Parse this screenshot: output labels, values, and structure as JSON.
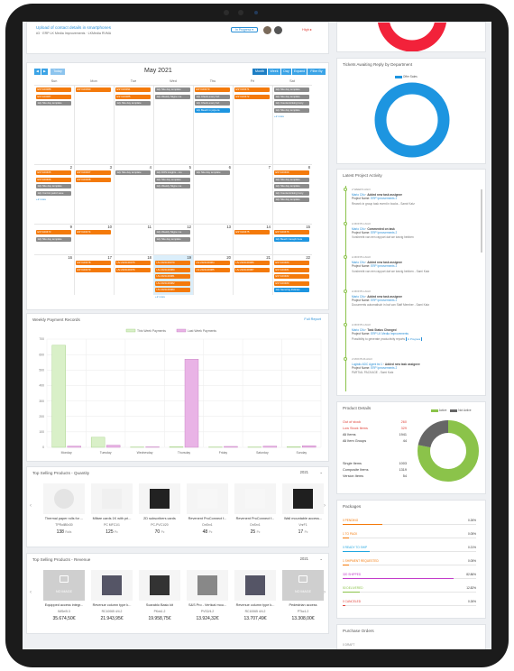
{
  "top_task": {
    "title": "Upload of contact details in smartphones",
    "sub": "#3 · ERP LK Media Improvements · LKMedia RVMA",
    "status": "In Progress ▾",
    "priority": "High ▸"
  },
  "calendar": {
    "today": "Today",
    "month": "May 2021",
    "views": [
      "Month",
      "Week",
      "Day",
      "Expand",
      "Filter By"
    ],
    "days": [
      "Sun",
      "Mon",
      "Tue",
      "Wed",
      "Thu",
      "Fri",
      "Sat"
    ],
    "weeks": [
      {
        "nums": [
          "",
          "",
          "",
          "",
          "",
          "",
          ""
        ],
        "events": [
          {
            "col": 0,
            "row": 0,
            "c": "o",
            "t": "ESY100088"
          },
          {
            "col": 0,
            "row": 1,
            "c": "o",
            "t": "ESY100087"
          },
          {
            "col": 0,
            "row": 2,
            "c": "g",
            "t": "12p Site day template"
          },
          {
            "col": 1,
            "row": 0,
            "c": "o",
            "t": "ESY100090"
          },
          {
            "col": 2,
            "row": 0,
            "c": "o",
            "t": "ESY100091"
          },
          {
            "col": 2,
            "row": 1,
            "c": "o",
            "t": "ESY100085"
          },
          {
            "col": 2,
            "row": 2,
            "c": "g",
            "t": "12p Site day template"
          },
          {
            "col": 3,
            "row": 0,
            "c": "g",
            "t": "12p Site day template"
          },
          {
            "col": 3,
            "row": 1,
            "c": "g",
            "t": "12p Weekly Skype me"
          },
          {
            "col": 4,
            "row": 0,
            "c": "o",
            "t": "ESY100470"
          },
          {
            "col": 4,
            "row": 1,
            "c": "g",
            "t": "12p Check every fort"
          },
          {
            "col": 4,
            "row": 2,
            "c": "g",
            "t": "12p Check every fort"
          },
          {
            "col": 4,
            "row": 3,
            "c": "b",
            "t": "12p Beach in julyo-la"
          },
          {
            "col": 5,
            "row": 0,
            "c": "o",
            "t": "ESY100471"
          },
          {
            "col": 5,
            "row": 1,
            "c": "o",
            "t": "ESY100472"
          },
          {
            "col": 6,
            "row": 0,
            "c": "g",
            "t": "12p Site day template"
          },
          {
            "col": 6,
            "row": 1,
            "c": "g",
            "t": "12p Site day template"
          },
          {
            "col": 6,
            "row": 2,
            "c": "g",
            "t": "12p Countersinking Ivory"
          },
          {
            "col": 6,
            "row": 3,
            "c": "g",
            "t": "12p Site day template"
          }
        ],
        "more": [
          6
        ]
      },
      {
        "nums": [
          "2",
          "3",
          "4",
          "5",
          "6",
          "7",
          "8"
        ],
        "events": [
          {
            "col": 0,
            "row": 0,
            "c": "o",
            "t": "ESY100465"
          },
          {
            "col": 0,
            "row": 1,
            "c": "o",
            "t": "ESY100466"
          },
          {
            "col": 0,
            "row": 2,
            "c": "g",
            "t": "12p Site day template"
          },
          {
            "col": 0,
            "row": 3,
            "c": "g",
            "t": "12p Control patrol save"
          },
          {
            "col": 1,
            "row": 0,
            "c": "o",
            "t": "ESY100467"
          },
          {
            "col": 1,
            "row": 1,
            "c": "o",
            "t": "ESY100468"
          },
          {
            "col": 2,
            "row": 0,
            "c": "g",
            "t": "12p Site day template"
          },
          {
            "col": 3,
            "row": 0,
            "c": "g",
            "t": "12p DOS insights - ros"
          },
          {
            "col": 3,
            "row": 1,
            "c": "g",
            "t": "12p Site day template"
          },
          {
            "col": 3,
            "row": 2,
            "c": "g",
            "t": "12p Weekly Skype me"
          },
          {
            "col": 4,
            "row": 0,
            "c": "g",
            "t": "12p Site day template"
          },
          {
            "col": 6,
            "row": 0,
            "c": "o",
            "t": "ESY100469"
          },
          {
            "col": 6,
            "row": 1,
            "c": "g",
            "t": "12p Site day template"
          },
          {
            "col": 6,
            "row": 2,
            "c": "g",
            "t": "12p Site day template"
          },
          {
            "col": 6,
            "row": 3,
            "c": "g",
            "t": "12p Countersinking Ivory"
          },
          {
            "col": 6,
            "row": 4,
            "c": "g",
            "t": "12p Site day template"
          }
        ],
        "more": [
          0
        ]
      },
      {
        "nums": [
          "9",
          "10",
          "11",
          "12",
          "13",
          "14",
          "15"
        ],
        "events": [
          {
            "col": 0,
            "row": 0,
            "c": "o",
            "t": "ESY100473"
          },
          {
            "col": 0,
            "row": 1,
            "c": "g",
            "t": "12p Site day template"
          },
          {
            "col": 1,
            "row": 0,
            "c": "o",
            "t": "ESY100474"
          },
          {
            "col": 3,
            "row": 0,
            "c": "g",
            "t": "12p Weekly Skype me"
          },
          {
            "col": 3,
            "row": 1,
            "c": "g",
            "t": "12p Site day template"
          },
          {
            "col": 5,
            "row": 0,
            "c": "o",
            "t": "ESY100475"
          },
          {
            "col": 6,
            "row": 0,
            "c": "o",
            "t": "ESY100476"
          },
          {
            "col": 6,
            "row": 1,
            "c": "b",
            "t": "12p Beach Caraph here"
          }
        ],
        "more": []
      },
      {
        "nums": [
          "16",
          "17",
          "18",
          "19",
          "20",
          "21",
          "22"
        ],
        "events": [
          {
            "col": 1,
            "row": 0,
            "c": "o",
            "t": "ESY100478"
          },
          {
            "col": 1,
            "row": 1,
            "c": "o",
            "t": "ESY100479"
          },
          {
            "col": 2,
            "row": 0,
            "c": "o",
            "t": "HV-2021100075"
          },
          {
            "col": 2,
            "row": 1,
            "c": "o",
            "t": "HV-2021100076"
          },
          {
            "col": 3,
            "row": 0,
            "c": "o",
            "t": "HV-2021100079"
          },
          {
            "col": 3,
            "row": 1,
            "c": "o",
            "t": "HV-2021100080"
          },
          {
            "col": 3,
            "row": 2,
            "c": "o",
            "t": "HV-2021100081"
          },
          {
            "col": 3,
            "row": 3,
            "c": "o",
            "t": "HV-2021100082"
          },
          {
            "col": 3,
            "row": 4,
            "c": "o",
            "t": "HV-2021100083"
          },
          {
            "col": 4,
            "row": 0,
            "c": "o",
            "t": "HV-2021100084"
          },
          {
            "col": 4,
            "row": 1,
            "c": "o",
            "t": "HV-2021100085"
          },
          {
            "col": 5,
            "row": 0,
            "c": "o",
            "t": "HV-2021100086"
          },
          {
            "col": 5,
            "row": 1,
            "c": "o",
            "t": "HV-2021100087"
          },
          {
            "col": 6,
            "row": 0,
            "c": "o",
            "t": "ESY100480"
          },
          {
            "col": 6,
            "row": 1,
            "c": "o",
            "t": "ESY100481"
          },
          {
            "col": 6,
            "row": 2,
            "c": "o",
            "t": "ESY100482"
          },
          {
            "col": 6,
            "row": 3,
            "c": "o",
            "t": "ESY100483"
          },
          {
            "col": 6,
            "row": 4,
            "c": "b",
            "t": "12p Securing Policies"
          }
        ],
        "more": [
          3
        ]
      }
    ],
    "more_label": "+2 more"
  },
  "payments": {
    "title": "Weekly Payment Records",
    "link": "Full Report",
    "legend": [
      "This Week Payments",
      "Last Week Payments"
    ]
  },
  "chart_data": {
    "type": "bar",
    "categories": [
      "Monday",
      "Tuesday",
      "Wednesday",
      "Thursday",
      "Friday",
      "Saturday",
      "Sunday"
    ],
    "series": [
      {
        "name": "This Week Payments",
        "values": [
          660,
          65,
          2,
          4,
          2,
          2,
          4
        ],
        "color": "#d9f0c8"
      },
      {
        "name": "Last Week Payments",
        "values": [
          8,
          14,
          3,
          570,
          6,
          8,
          10
        ],
        "color": "#e9b3e6"
      }
    ],
    "yticks": [
      "0",
      "100",
      "200",
      "300",
      "400",
      "500",
      "600",
      "700"
    ],
    "ylim": [
      0,
      700
    ]
  },
  "quantity": {
    "title": "Top Selling Products - Quantity",
    "year": "2021",
    "items": [
      {
        "name": "Thermal paper rolls for ...",
        "sub": "TPRoll80x30",
        "val": "138",
        "unit": "Rolls"
      },
      {
        "name": "Mifare cards 1K with pri...",
        "sub": "PC MFC1/1",
        "val": "125",
        "unit": "Pc"
      },
      {
        "name": "2D subscribers cards",
        "sub": "PC-PVC1/20",
        "val": "70",
        "unit": "Pc"
      },
      {
        "name": "Revenent ProConnect f...",
        "sub": "DnSrv1",
        "val": "48",
        "unit": "Pc"
      },
      {
        "name": "Revenent ProConnect f...",
        "sub": "DnSrv1",
        "val": "25",
        "unit": "Pc"
      },
      {
        "name": "Wall mountable access...",
        "sub": "VnrF1",
        "val": "17",
        "unit": "Pc"
      }
    ]
  },
  "revenue": {
    "title": "Top Selling Products - Revenue",
    "year": "2021",
    "noimg": "NO IMAGE",
    "items": [
      {
        "name": "Equipped access integr...",
        "sub": "IMSe/5.3",
        "val": "35.674,50€"
      },
      {
        "name": "Revenue column type k...",
        "sub": "RC10065 4/4.2",
        "val": "21.943,95€"
      },
      {
        "name": "Scarablo Basic kit",
        "sub": "PKnk1.2",
        "val": "19.958,75€"
      },
      {
        "name": "S&S Pro - Vertical mou...",
        "sub": "PVS2/4.2",
        "val": "13.924,32€"
      },
      {
        "name": "Revenue column type k...",
        "sub": "RC10065 4/4.2",
        "val": "13.707,49€"
      },
      {
        "name": "Pedestrian access",
        "sub": "PTkc1.2",
        "val": "13.308,00€"
      }
    ]
  },
  "tickets": {
    "title": "Tickets Awaiting Reply by Department",
    "legend": "Offer Sales"
  },
  "activity": {
    "title": "Latest Project Activity",
    "items": [
      {
        "time": "2 WEEKS AGO",
        "who": "Mario Cifu",
        "act": "· Added new task assignee",
        "proj": "Project Name: ",
        "pl": "ERP Ipmovements 2",
        "desc": "Rework in group task event in books - Samir Katz"
      },
      {
        "time": "A MONTH AGO",
        "who": "Mario Cifu",
        "act": "· Commented on task",
        "proj": "Project Name: ",
        "pl": "ERP Ipmovements 2",
        "desc": "Vorsheebt van een rapport dat we toezig hebben"
      },
      {
        "time": "A MONTH AGO",
        "who": "Mario Cifu",
        "act": "· Added new task assignee",
        "proj": "Project Name: ",
        "pl": "ERP Ipmovements 2",
        "desc": "Vorsheebt van een rapport dat we toezig hebben - Sami Katz"
      },
      {
        "time": "A MONTH AGO",
        "who": "Mario Cifu",
        "act": "· Added new task assignee",
        "proj": "Project Name: ",
        "pl": "ERP Ipmovements 2",
        "desc": "Documents automatisch in bal van Staff Member - Sami Katz"
      },
      {
        "time": "A MONTH AGO",
        "who": "Mario Cifu",
        "act": "· Task Status Changed",
        "proj": "Project Name: ",
        "pl": "ERP LK Media Improvements",
        "desc": "Possibility to generate productivity reports"
      },
      {
        "time": "2 MONTHS AGO",
        "who": "Logistic ADC Agent tst 1",
        "act": "· Added new task assignee",
        "proj": "Project Name: ",
        "pl": "ERP Ipmovements 2",
        "desc": "PARTIAL PACKAGE - Sami Katz"
      }
    ],
    "badge": "In Progress"
  },
  "product_details": {
    "title": "Product Details",
    "rows": [
      {
        "k": "Out of stock",
        "v": "260",
        "c": "#e0433b"
      },
      {
        "k": "Low Stock Items",
        "v": "329",
        "c": "#e0433b"
      },
      {
        "k": "All Items",
        "v": "1941",
        "c": "#333"
      },
      {
        "k": "All Item Groups",
        "v": "44",
        "c": "#333"
      }
    ],
    "rows2": [
      {
        "k": "Single Items",
        "v": "1003"
      },
      {
        "k": "Composite Items",
        "v": "1319"
      },
      {
        "k": "Version Items",
        "v": "54"
      }
    ],
    "legend": [
      "Active",
      "Not Active"
    ],
    "active": 0.78
  },
  "packages": {
    "title": "Packages",
    "rows": [
      {
        "k": "0 PENDING",
        "v": "0.26%",
        "c": "#f47a0b",
        "w": 0.3
      },
      {
        "k": "1 TO PACK",
        "v": "0.05%",
        "c": "#f47a0b",
        "w": 0.05
      },
      {
        "k": "0 READY TO SHIP",
        "v": "0.21%",
        "c": "#22a7e0",
        "w": 0.2
      },
      {
        "k": "1 SHIPMENT REQUESTED",
        "v": "0.05%",
        "c": "#f47a0b",
        "w": 0.05
      },
      {
        "k": "320 SHIPPED",
        "v": "82.86%",
        "c": "#c23bc9",
        "w": 0.83
      },
      {
        "k": "50 DELIVERED",
        "v": "12.82%",
        "c": "#8bc34a",
        "w": 0.13
      },
      {
        "k": "0 CANCELED",
        "v": "0.26%",
        "c": "#e0433b",
        "w": 0.02
      }
    ]
  },
  "purchase": {
    "title": "Purchase Orders",
    "first": "0 DRAFT"
  }
}
